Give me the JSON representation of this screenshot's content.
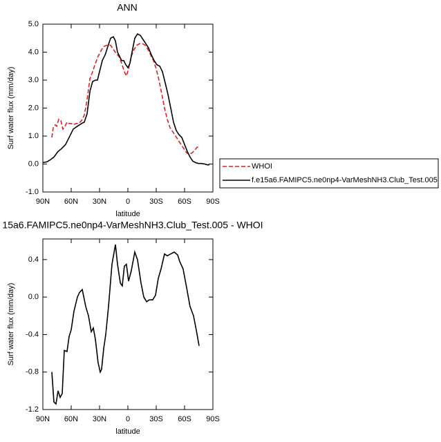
{
  "chart_data": [
    {
      "type": "line",
      "title": "ANN",
      "xlabel": "latitude",
      "ylabel": "Surf water flux (mm/day)",
      "xlim": [
        90,
        -90
      ],
      "xticks": [
        {
          "value": 90,
          "label": "90N"
        },
        {
          "value": 60,
          "label": "60N"
        },
        {
          "value": 30,
          "label": "30N"
        },
        0,
        {
          "value": -30,
          "label": "30S"
        },
        {
          "value": -60,
          "label": "60S"
        },
        {
          "value": -90,
          "label": "90S"
        }
      ],
      "ylim": [
        -1,
        5
      ],
      "yticks": [
        {
          "value": -1,
          "label": "-1.0"
        },
        {
          "value": 0,
          "label": "0.0"
        },
        {
          "value": 1,
          "label": "1.0"
        },
        {
          "value": 2,
          "label": "2.0"
        },
        {
          "value": 3,
          "label": "3.0"
        },
        {
          "value": 4,
          "label": "4.0"
        },
        {
          "value": 5,
          "label": "5.0"
        }
      ],
      "legend": "right",
      "series": [
        {
          "name": "WHOI",
          "color": "#e02020",
          "dash": true,
          "x": [
            80.5,
            79.0,
            76.8,
            75.4,
            73.2,
            71.0,
            68.8,
            66.6,
            64.4,
            62.2,
            60.0,
            57.8,
            54.9,
            52.0,
            49.0,
            46.1,
            43.2,
            40.2,
            37.3,
            34.4,
            31.5,
            28.5,
            25.6,
            22.0,
            18.3,
            15.4,
            12.4,
            9.5,
            6.6,
            3.7,
            1.5,
            -0.7,
            -3.6,
            -6.6,
            -9.5,
            -12.4,
            -15.4,
            -18.3,
            -21.2,
            -24.1,
            -27.1,
            -30.0,
            -32.9,
            -35.9,
            -38.8,
            -41.7,
            -44.6,
            -47.6,
            -50.5,
            -53.4,
            -56.3,
            -59.3,
            -62.2,
            -65.1,
            -68.0,
            -71.0,
            -73.2,
            -75.4
          ],
          "values": [
            0.95,
            1.3,
            1.4,
            1.35,
            1.6,
            1.55,
            1.25,
            1.35,
            1.5,
            1.45,
            1.45,
            1.4,
            1.45,
            1.45,
            1.55,
            1.75,
            2.3,
            3.05,
            3.3,
            3.6,
            3.85,
            4.05,
            4.2,
            4.25,
            4.25,
            4.1,
            3.95,
            3.85,
            3.6,
            3.3,
            3.15,
            3.4,
            3.85,
            4.1,
            4.25,
            4.3,
            4.3,
            4.25,
            4.1,
            3.9,
            3.7,
            3.4,
            3.0,
            2.5,
            2.0,
            1.6,
            1.3,
            1.15,
            1.0,
            0.85,
            0.7,
            0.55,
            0.4,
            0.35,
            0.4,
            0.5,
            0.6,
            0.6
          ]
        },
        {
          "name": "f.e15a6.FAMIPC5.ne0np4-VarMeshNH3.Club_Test.005",
          "color": "#000000",
          "dash": false,
          "x": [
            90,
            85.6,
            82.0,
            78.3,
            73.9,
            70.2,
            65.9,
            62.2,
            57.8,
            53.4,
            49.0,
            46.1,
            43.2,
            40.2,
            37.3,
            34.4,
            32.2,
            30.0,
            27.1,
            24.1,
            21.2,
            18.3,
            15.4,
            13.2,
            11.0,
            8.8,
            6.6,
            4.4,
            2.2,
            0.0,
            -2.2,
            -4.4,
            -7.3,
            -10.2,
            -13.2,
            -16.1,
            -19.0,
            -21.9,
            -24.9,
            -27.8,
            -30.7,
            -33.7,
            -36.6,
            -39.5,
            -42.4,
            -45.4,
            -48.3,
            -51.2,
            -54.1,
            -57.1,
            -60.0,
            -62.9,
            -65.8,
            -68.8,
            -71.7,
            -74.6,
            -77.6,
            -81.2,
            -84.1,
            -86.3
          ],
          "values": [
            0.05,
            0.08,
            0.15,
            0.25,
            0.45,
            0.55,
            0.7,
            0.95,
            1.25,
            1.35,
            1.45,
            1.5,
            1.8,
            2.6,
            2.95,
            3.0,
            3.0,
            3.3,
            3.7,
            3.9,
            4.2,
            4.5,
            4.55,
            4.4,
            4.0,
            3.85,
            3.7,
            3.7,
            3.55,
            3.45,
            3.6,
            4.0,
            4.5,
            4.65,
            4.6,
            4.45,
            4.3,
            4.15,
            3.9,
            3.7,
            3.55,
            3.5,
            3.3,
            2.9,
            2.5,
            2.0,
            1.5,
            1.2,
            1.05,
            0.95,
            0.7,
            0.45,
            0.25,
            0.1,
            0.05,
            0.02,
            0.02,
            0.0,
            -0.03,
            -0.03
          ]
        }
      ]
    },
    {
      "type": "line",
      "title": "15a6.FAMIPC5.ne0np4-VarMeshNH3.Club_Test.005 - WHOI",
      "xlabel": "latitude",
      "ylabel": "Surf water flux (mm/day)",
      "xlim": [
        90,
        -90
      ],
      "xticks": [
        {
          "value": 90,
          "label": "90N"
        },
        {
          "value": 60,
          "label": "60N"
        },
        {
          "value": 30,
          "label": "30N"
        },
        0,
        {
          "value": -30,
          "label": "30S"
        },
        {
          "value": -60,
          "label": "60S"
        },
        {
          "value": -90,
          "label": "90S"
        }
      ],
      "ylim": [
        -1.2,
        0.62
      ],
      "yticks": [
        -1.2,
        -0.8,
        -0.4,
        {
          "value": 0,
          "label": "0.0"
        },
        0.4
      ],
      "series": [
        {
          "color": "#000000",
          "dash": false,
          "x": [
            80.5,
            78.3,
            76.1,
            73.9,
            71.7,
            69.5,
            67.3,
            64.4,
            62.2,
            60.0,
            57.1,
            53.4,
            51.2,
            48.3,
            44.6,
            41.7,
            38.8,
            36.6,
            34.4,
            31.5,
            29.3,
            27.8,
            25.6,
            23.4,
            20.5,
            16.8,
            13.2,
            11.0,
            8.0,
            5.9,
            3.7,
            1.5,
            -0.7,
            -3.6,
            -7.3,
            -10.2,
            -13.9,
            -16.8,
            -19.8,
            -22.7,
            -26.3,
            -29.3,
            -32.2,
            -35.1,
            -38.8,
            -41.7,
            -45.4,
            -49.0,
            -52.7,
            -54.9,
            -58.5,
            -62.2,
            -65.8,
            -69.5,
            -72.4,
            -75.4
          ],
          "values": [
            -0.8,
            -1.12,
            -1.14,
            -1.0,
            -1.07,
            -1.03,
            -0.57,
            -0.58,
            -0.42,
            -0.35,
            -0.15,
            0.0,
            0.05,
            0.08,
            -0.1,
            -0.2,
            -0.37,
            -0.33,
            -0.45,
            -0.7,
            -0.8,
            -0.77,
            -0.55,
            -0.4,
            -0.1,
            0.35,
            0.56,
            0.35,
            0.15,
            0.12,
            0.33,
            0.35,
            0.17,
            0.28,
            0.48,
            0.4,
            0.15,
            0.0,
            -0.05,
            -0.03,
            -0.03,
            0.02,
            0.2,
            0.3,
            0.46,
            0.44,
            0.46,
            0.48,
            0.45,
            0.38,
            0.3,
            0.1,
            -0.1,
            -0.2,
            -0.35,
            -0.52
          ]
        }
      ]
    }
  ]
}
